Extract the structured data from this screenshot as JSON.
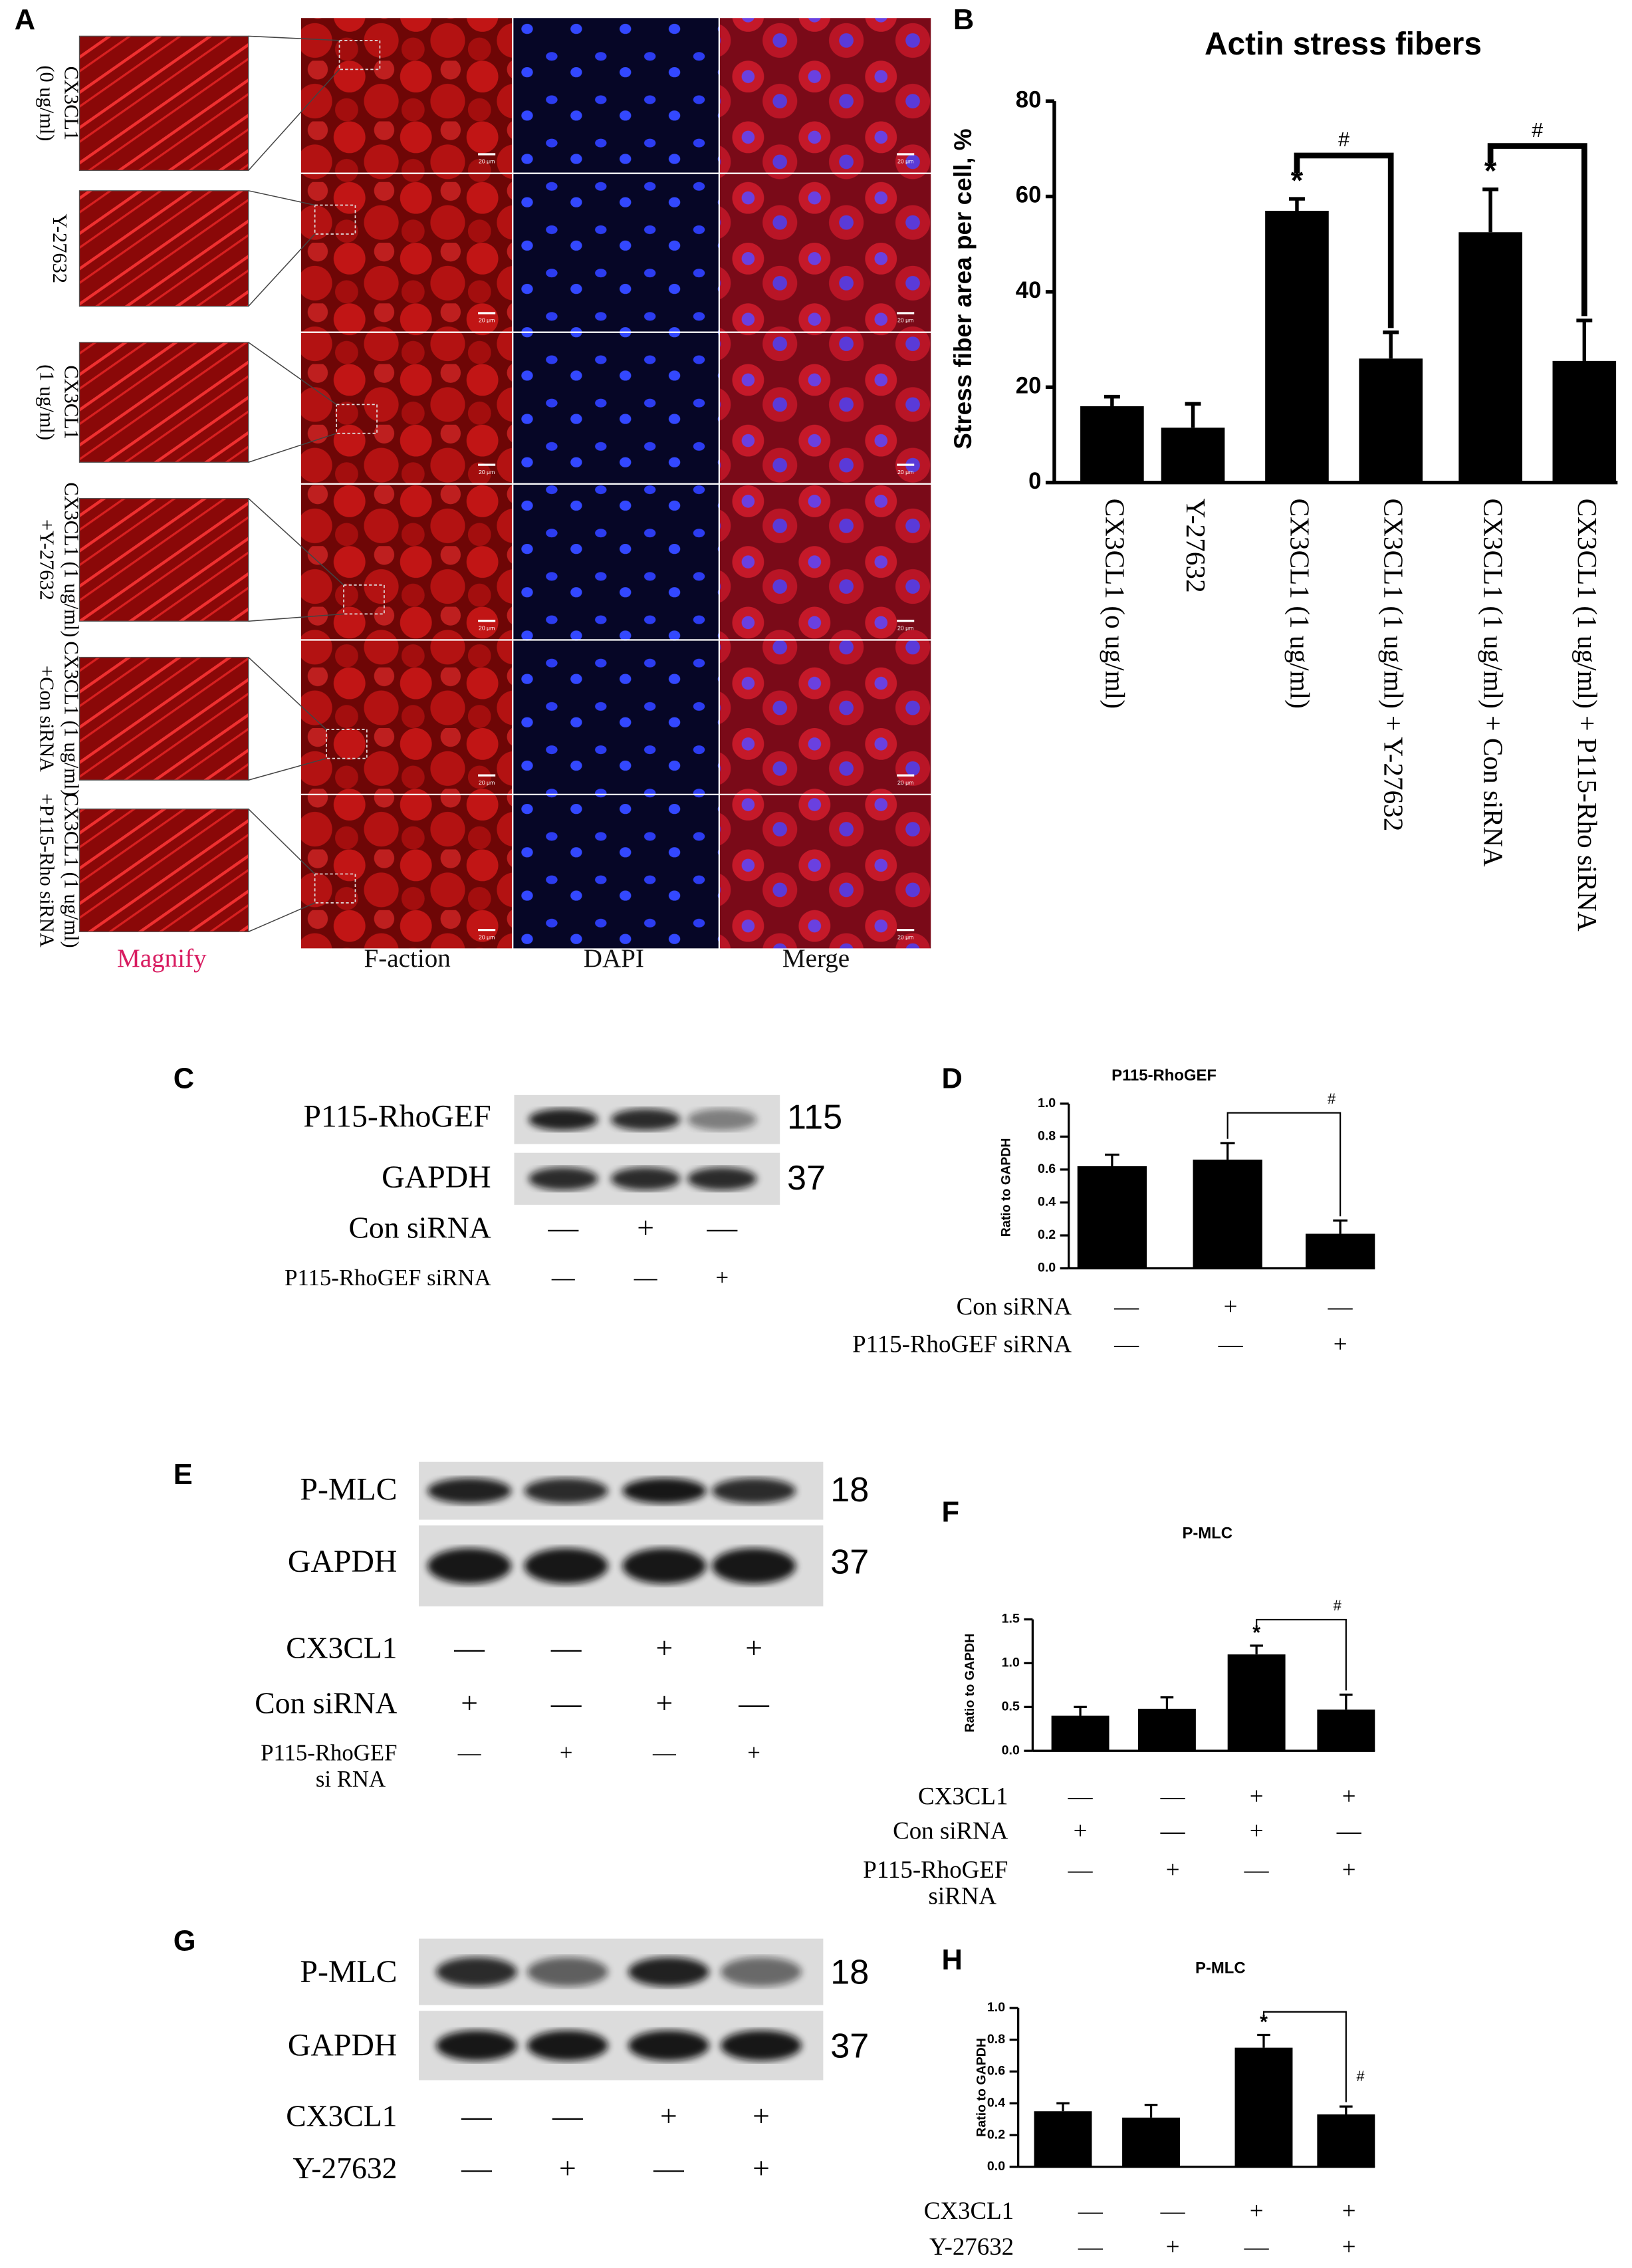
{
  "chart_data": [
    {
      "type": "bar",
      "panel": "B",
      "title": "Actin stress fibers",
      "y_label": "Stress fiber area per cell, %",
      "categories": [
        "CX3CL1 (o ug/ml)",
        "Y-27632",
        "CX3CL1 (1 ug/ml)",
        "CX3CL1 (1 ug/ml) + Y-27632",
        "CX3CL1 (1 ug/ml) + Con siRNA",
        "CX3CL1 (1 ug/ml) + P115-Rho siRNA"
      ],
      "values": [
        16,
        11.5,
        57,
        26,
        52.5,
        25.5
      ],
      "errors": [
        2,
        5,
        2.5,
        5.5,
        9,
        8.5
      ],
      "color": "#000000",
      "star_labels": [
        null,
        null,
        "*",
        null,
        "*",
        null
      ],
      "bracket_labels": [
        null,
        null,
        null,
        "#",
        null,
        "#"
      ],
      "ylim": [
        0,
        80
      ],
      "yticks": [
        0,
        20,
        40,
        60,
        80
      ]
    },
    {
      "type": "bar",
      "panel": "D",
      "title": "P115-RhoGEF",
      "y_label": "Ratio to GAPDH",
      "categories": [
        null,
        null,
        null
      ],
      "values": [
        0.62,
        0.66,
        0.21
      ],
      "errors": [
        0.07,
        0.1,
        0.08
      ],
      "color": "#000000",
      "star_labels": [
        null,
        null,
        null
      ],
      "bracket_labels": [
        null,
        null,
        "#"
      ],
      "ylim": [
        0,
        1
      ],
      "yticks": [
        {
          "value": 0,
          "label": "0.0"
        },
        0.2,
        0.4,
        0.6,
        0.8,
        {
          "value": 1,
          "label": "1.0"
        }
      ],
      "conditions": [
        {
          "name": "Con siRNA",
          "marks": [
            "—",
            "+",
            "—"
          ]
        },
        {
          "name": "P115-RhoGEF siRNA",
          "marks": [
            "—",
            "—",
            "+"
          ]
        }
      ]
    },
    {
      "type": "bar",
      "panel": "F",
      "title": "P-MLC",
      "y_label": "Ratio to GAPDH",
      "categories": [
        null,
        null,
        null,
        null
      ],
      "values": [
        0.4,
        0.48,
        1.1,
        0.47
      ],
      "errors": [
        0.1,
        0.13,
        0.1,
        0.17
      ],
      "color": "#000000",
      "star_labels": [
        null,
        null,
        "*",
        null
      ],
      "bracket_labels": [
        null,
        null,
        null,
        "#"
      ],
      "ylim": [
        0,
        1.5
      ],
      "yticks": [
        {
          "value": 0,
          "label": "0.0"
        },
        0.5,
        {
          "value": 1,
          "label": "1.0"
        },
        1.5
      ],
      "conditions": [
        {
          "name": "CX3CL1",
          "marks": [
            "—",
            "—",
            "+",
            "+"
          ]
        },
        {
          "name": "Con siRNA",
          "marks": [
            "+",
            "—",
            "+",
            "—"
          ]
        },
        {
          "name": [
            "P115-RhoGEF",
            "siRNA"
          ],
          "marks": [
            "—",
            "+",
            "—",
            "+"
          ]
        }
      ]
    },
    {
      "type": "bar",
      "panel": "H",
      "title": "P-MLC",
      "y_label": "Ratio to GAPDH",
      "categories": [
        null,
        null,
        null,
        null
      ],
      "values": [
        0.35,
        0.31,
        0.75,
        0.33
      ],
      "errors": [
        0.05,
        0.08,
        0.08,
        0.05
      ],
      "color": "#000000",
      "star_labels": [
        null,
        null,
        "*",
        null
      ],
      "bracket_labels": [
        null,
        null,
        null,
        "#"
      ],
      "ylim": [
        0,
        1
      ],
      "yticks": [
        {
          "value": 0,
          "label": "0.0"
        },
        0.2,
        0.4,
        0.6,
        0.8,
        {
          "value": 1,
          "label": "1.0"
        }
      ],
      "conditions": [
        {
          "name": "CX3CL1",
          "marks": [
            "—",
            "—",
            "+",
            "+"
          ]
        },
        {
          "name": "Y-27632",
          "marks": [
            "—",
            "+",
            "—",
            "+"
          ]
        }
      ]
    }
  ],
  "panel_a": {
    "panel": "A",
    "row_labels": [
      [
        "CX3CL1",
        "(0 ug/ml)"
      ],
      [
        "Y-27632"
      ],
      [
        "CX3CL1",
        "(1 ug/ml)"
      ],
      [
        "CX3CL1 (1 ug/ml)",
        "+Y-27632"
      ],
      [
        "CX3CL1 (1 ug/ml)",
        "+Con siRNA"
      ],
      [
        "CX3CL1 (1 ug/ml)",
        "+P115-Rho siRNA"
      ]
    ],
    "column_labels": [
      "Magnify",
      "F-action",
      "DAPI",
      "Merge"
    ],
    "scale_bar": "20 μm"
  },
  "blots": [
    {
      "panel": "C",
      "bands": [
        {
          "name": "P115-RhoGEF",
          "size": 115
        },
        {
          "name": "GAPDH",
          "size": 37
        }
      ],
      "conditions": [
        {
          "name": "Con siRNA",
          "marks": [
            "—",
            "+",
            "—"
          ]
        },
        {
          "name": "P115-RhoGEF siRNA",
          "marks": [
            "—",
            "—",
            "+"
          ]
        }
      ]
    },
    {
      "panel": "E",
      "bands": [
        {
          "name": "P-MLC",
          "size": 18
        },
        {
          "name": "GAPDH",
          "size": 37
        }
      ],
      "conditions": [
        {
          "name": "CX3CL1",
          "marks": [
            "—",
            "—",
            "+",
            "+"
          ]
        },
        {
          "name": "Con siRNA",
          "marks": [
            "+",
            "—",
            "+",
            "—"
          ]
        },
        {
          "name": [
            "P115-RhoGEF",
            "si RNA"
          ],
          "marks": [
            "—",
            "+",
            "—",
            "+"
          ]
        }
      ]
    },
    {
      "panel": "G",
      "bands": [
        {
          "name": "P-MLC",
          "size": 18
        },
        {
          "name": "GAPDH",
          "size": 37
        }
      ],
      "conditions": [
        {
          "name": "CX3CL1",
          "marks": [
            "—",
            "—",
            "+",
            "+"
          ]
        },
        {
          "name": "Y-27632",
          "marks": [
            "—",
            "+",
            "—",
            "+"
          ]
        }
      ]
    }
  ]
}
